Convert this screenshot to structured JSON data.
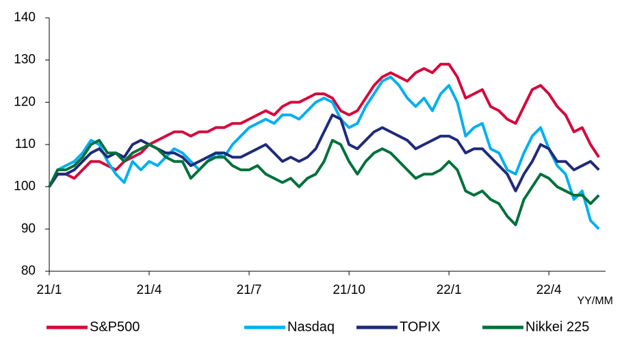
{
  "chart_data": {
    "type": "line",
    "x_label": "YY/MM",
    "x": [
      0,
      0.25,
      0.5,
      0.75,
      1,
      1.25,
      1.5,
      1.75,
      2,
      2.25,
      2.5,
      2.75,
      3,
      3.25,
      3.5,
      3.75,
      4,
      4.25,
      4.5,
      4.75,
      5,
      5.25,
      5.5,
      5.75,
      6,
      6.25,
      6.5,
      6.75,
      7,
      7.25,
      7.5,
      7.75,
      8,
      8.25,
      8.5,
      8.75,
      9,
      9.25,
      9.5,
      9.75,
      10,
      10.25,
      10.5,
      10.75,
      11,
      11.25,
      11.5,
      11.75,
      12,
      12.25,
      12.5,
      12.75,
      13,
      13.25,
      13.5,
      13.75,
      14,
      14.25,
      14.5,
      14.75,
      15,
      15.25,
      15.5,
      15.75,
      16,
      16.25,
      16.5
    ],
    "xlim": [
      0,
      16.7
    ],
    "xticks": [
      {
        "value": 0,
        "label": "21/1"
      },
      {
        "value": 3,
        "label": "21/4"
      },
      {
        "value": 6,
        "label": "21/7"
      },
      {
        "value": 9,
        "label": "21/10"
      },
      {
        "value": 12,
        "label": "22/1"
      },
      {
        "value": 15,
        "label": "22/4"
      }
    ],
    "ylim": [
      80,
      140
    ],
    "yticks": [
      80,
      90,
      100,
      110,
      120,
      130,
      140
    ],
    "grid": false,
    "legend": "bottom",
    "series": [
      {
        "name": "S&P500",
        "color": "#d6083b",
        "values": [
          100,
          103,
          103,
          102,
          104,
          106,
          106,
          105,
          104,
          106,
          107,
          108,
          110,
          111,
          112,
          113,
          113,
          112,
          113,
          113,
          114,
          114,
          115,
          115,
          116,
          117,
          118,
          117,
          119,
          120,
          120,
          121,
          122,
          122,
          121,
          118,
          117,
          118,
          121,
          124,
          126,
          127,
          126,
          125,
          127,
          128,
          127,
          129,
          129,
          126,
          121,
          122,
          123,
          119,
          118,
          116,
          115,
          119,
          123,
          124,
          122,
          119,
          117,
          113,
          114,
          110,
          107
        ]
      },
      {
        "name": "Nasdaq",
        "color": "#00b0f0",
        "values": [
          100,
          104,
          105,
          106,
          108,
          111,
          110,
          106,
          103,
          101,
          106,
          104,
          106,
          105,
          107,
          109,
          108,
          106,
          104,
          106,
          108,
          107,
          110,
          112,
          114,
          115,
          116,
          115,
          117,
          117,
          116,
          118,
          120,
          121,
          120,
          116,
          114,
          115,
          119,
          122,
          125,
          126,
          124,
          121,
          119,
          121,
          118,
          122,
          124,
          120,
          112,
          114,
          115,
          109,
          108,
          104,
          103,
          108,
          112,
          114,
          109,
          105,
          103,
          97,
          99,
          92,
          90
        ]
      },
      {
        "name": "TOPIX",
        "color": "#1f2a7a",
        "values": [
          100,
          103,
          103,
          104,
          106,
          108,
          109,
          107,
          108,
          107,
          110,
          111,
          110,
          109,
          108,
          108,
          107,
          105,
          106,
          107,
          108,
          108,
          107,
          107,
          108,
          109,
          110,
          108,
          106,
          107,
          106,
          107,
          109,
          113,
          117,
          116,
          110,
          109,
          111,
          113,
          114,
          113,
          112,
          111,
          109,
          110,
          111,
          112,
          112,
          111,
          108,
          109,
          109,
          107,
          105,
          103,
          99,
          103,
          106,
          110,
          109,
          106,
          106,
          104,
          105,
          106,
          104
        ]
      },
      {
        "name": "Nikkei 225",
        "color": "#00703c",
        "values": [
          100,
          104,
          104,
          105,
          107,
          110,
          111,
          108,
          108,
          106,
          108,
          109,
          110,
          109,
          107,
          106,
          106,
          102,
          104,
          106,
          107,
          107,
          105,
          104,
          104,
          105,
          103,
          102,
          101,
          102,
          100,
          102,
          103,
          106,
          111,
          110,
          106,
          103,
          106,
          108,
          109,
          108,
          106,
          104,
          102,
          103,
          103,
          104,
          106,
          104,
          99,
          98,
          99,
          97,
          96,
          93,
          91,
          97,
          100,
          103,
          102,
          100,
          99,
          98,
          98,
          96,
          98
        ]
      }
    ]
  }
}
